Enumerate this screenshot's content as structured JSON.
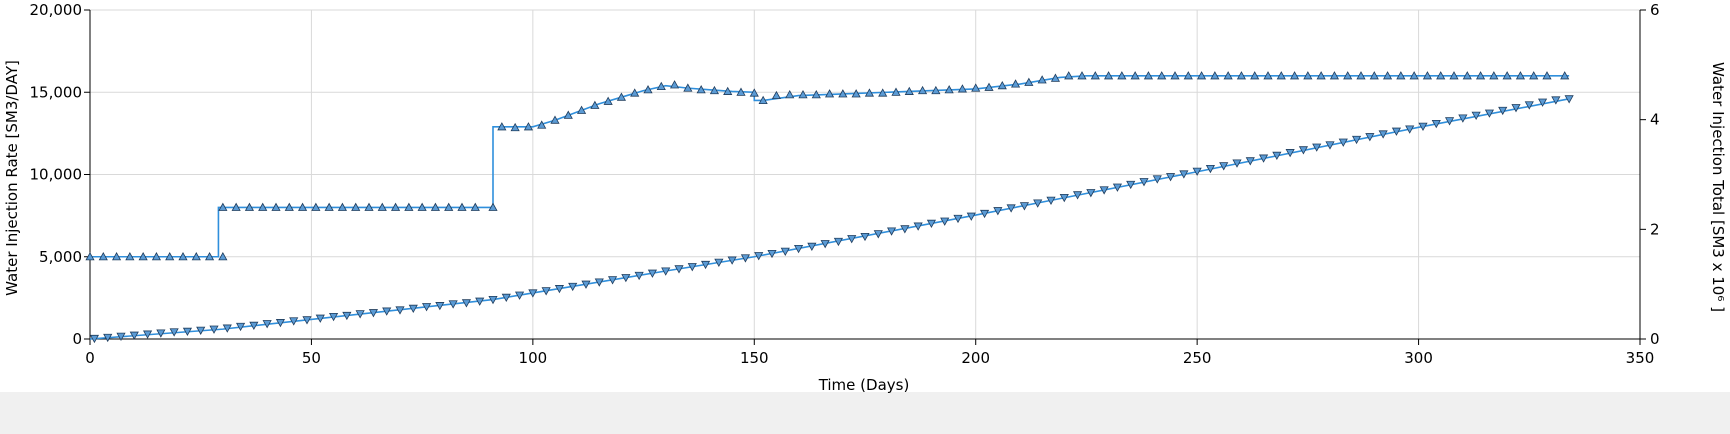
{
  "chart_data": {
    "type": "line",
    "xlabel": "Time (Days)",
    "ylabel": "Water Injection Rate [SM3/DAY]",
    "y2label": "Water Injection Total [SM3 x 10⁶ ]",
    "xlim": [
      0,
      350
    ],
    "ylim": [
      0,
      20000
    ],
    "y2lim": [
      0,
      6
    ],
    "x_ticks": [
      "0",
      "50",
      "100",
      "150",
      "200",
      "250",
      "300",
      "350"
    ],
    "y_ticks": [
      "0",
      "5,000",
      "10,000",
      "15,000",
      "20,000"
    ],
    "y2_ticks": [
      "0",
      "2",
      "4",
      "6"
    ],
    "grid": true,
    "series": [
      {
        "axis": "left",
        "marker": "triangle-up",
        "step": true,
        "color": "#2f8fdc",
        "marker_color": "#5b9bd5",
        "points": [
          [
            0,
            5000
          ],
          [
            29,
            5000
          ],
          [
            29,
            8000
          ],
          [
            91,
            8000
          ],
          [
            91,
            12900
          ],
          [
            100,
            12900
          ],
          [
            105,
            13300
          ],
          [
            110,
            13800
          ],
          [
            115,
            14300
          ],
          [
            120,
            14700
          ],
          [
            125,
            15100
          ],
          [
            130,
            15400
          ],
          [
            135,
            15250
          ],
          [
            140,
            15150
          ],
          [
            145,
            15050
          ],
          [
            150,
            15000
          ],
          [
            150,
            14500
          ],
          [
            152,
            14500
          ],
          [
            160,
            14800
          ],
          [
            170,
            14900
          ],
          [
            180,
            15000
          ],
          [
            190,
            15100
          ],
          [
            200,
            15200
          ],
          [
            210,
            15500
          ],
          [
            219,
            15900
          ],
          [
            225,
            16000
          ],
          [
            250,
            16000
          ],
          [
            300,
            16000
          ],
          [
            334,
            16000
          ]
        ],
        "markers": [
          [
            0,
            5000
          ],
          [
            3,
            5000
          ],
          [
            6,
            5000
          ],
          [
            9,
            5000
          ],
          [
            12,
            5000
          ],
          [
            15,
            5000
          ],
          [
            18,
            5000
          ],
          [
            21,
            5000
          ],
          [
            24,
            5000
          ],
          [
            27,
            5000
          ],
          [
            30,
            5000
          ],
          [
            30,
            8000
          ],
          [
            33,
            8000
          ],
          [
            36,
            8000
          ],
          [
            39,
            8000
          ],
          [
            42,
            8000
          ],
          [
            45,
            8000
          ],
          [
            48,
            8000
          ],
          [
            51,
            8000
          ],
          [
            54,
            8000
          ],
          [
            57,
            8000
          ],
          [
            60,
            8000
          ],
          [
            63,
            8000
          ],
          [
            66,
            8000
          ],
          [
            69,
            8000
          ],
          [
            72,
            8000
          ],
          [
            75,
            8000
          ],
          [
            78,
            8000
          ],
          [
            81,
            8000
          ],
          [
            84,
            8000
          ],
          [
            87,
            8000
          ],
          [
            91,
            8000
          ],
          [
            93,
            12900
          ],
          [
            96,
            12850
          ],
          [
            99,
            12900
          ],
          [
            102,
            13000
          ],
          [
            105,
            13300
          ],
          [
            108,
            13600
          ],
          [
            111,
            13900
          ],
          [
            114,
            14200
          ],
          [
            117,
            14450
          ],
          [
            120,
            14700
          ],
          [
            123,
            14950
          ],
          [
            126,
            15150
          ],
          [
            129,
            15350
          ],
          [
            132,
            15450
          ],
          [
            135,
            15250
          ],
          [
            138,
            15150
          ],
          [
            141,
            15100
          ],
          [
            144,
            15050
          ],
          [
            147,
            15000
          ],
          [
            150,
            14950
          ],
          [
            152,
            14500
          ],
          [
            155,
            14800
          ],
          [
            158,
            14850
          ],
          [
            161,
            14850
          ],
          [
            164,
            14850
          ],
          [
            167,
            14900
          ],
          [
            170,
            14900
          ],
          [
            173,
            14900
          ],
          [
            176,
            14950
          ],
          [
            179,
            14950
          ],
          [
            182,
            15000
          ],
          [
            185,
            15050
          ],
          [
            188,
            15100
          ],
          [
            191,
            15100
          ],
          [
            194,
            15150
          ],
          [
            197,
            15200
          ],
          [
            200,
            15250
          ],
          [
            203,
            15300
          ],
          [
            206,
            15400
          ],
          [
            209,
            15500
          ],
          [
            212,
            15600
          ],
          [
            215,
            15750
          ],
          [
            218,
            15850
          ],
          [
            221,
            16000
          ],
          [
            224,
            16000
          ],
          [
            227,
            16000
          ],
          [
            230,
            16000
          ],
          [
            233,
            16000
          ],
          [
            236,
            16000
          ],
          [
            239,
            16000
          ],
          [
            242,
            16000
          ],
          [
            245,
            16000
          ],
          [
            248,
            16000
          ],
          [
            251,
            16000
          ],
          [
            254,
            16000
          ],
          [
            257,
            16000
          ],
          [
            260,
            16000
          ],
          [
            263,
            16000
          ],
          [
            266,
            16000
          ],
          [
            269,
            16000
          ],
          [
            272,
            16000
          ],
          [
            275,
            16000
          ],
          [
            278,
            16000
          ],
          [
            281,
            16000
          ],
          [
            284,
            16000
          ],
          [
            287,
            16000
          ],
          [
            290,
            16000
          ],
          [
            293,
            16000
          ],
          [
            296,
            16000
          ],
          [
            299,
            16000
          ],
          [
            302,
            16000
          ],
          [
            305,
            16000
          ],
          [
            308,
            16000
          ],
          [
            311,
            16000
          ],
          [
            314,
            16000
          ],
          [
            317,
            16000
          ],
          [
            320,
            16000
          ],
          [
            323,
            16000
          ],
          [
            326,
            16000
          ],
          [
            329,
            16000
          ],
          [
            333,
            16000
          ]
        ]
      },
      {
        "axis": "right",
        "marker": "triangle-down",
        "step": false,
        "color": "#2f8fdc",
        "marker_color": "#5b9bd5",
        "points": [
          [
            0,
            0
          ],
          [
            30,
            0.18
          ],
          [
            91,
            0.72
          ],
          [
            100,
            0.84
          ],
          [
            130,
            1.24
          ],
          [
            150,
            1.5
          ],
          [
            200,
            2.26
          ],
          [
            219,
            2.56
          ],
          [
            250,
            3.05
          ],
          [
            300,
            3.86
          ],
          [
            334,
            4.38
          ]
        ],
        "markers": [
          [
            1,
            0.01
          ],
          [
            4,
            0.03
          ],
          [
            7,
            0.05
          ],
          [
            10,
            0.07
          ],
          [
            13,
            0.09
          ],
          [
            16,
            0.11
          ],
          [
            19,
            0.13
          ],
          [
            22,
            0.14
          ],
          [
            25,
            0.16
          ],
          [
            28,
            0.18
          ],
          [
            31,
            0.2
          ],
          [
            34,
            0.23
          ],
          [
            37,
            0.25
          ],
          [
            40,
            0.28
          ],
          [
            43,
            0.3
          ],
          [
            46,
            0.33
          ],
          [
            49,
            0.35
          ],
          [
            52,
            0.38
          ],
          [
            55,
            0.41
          ],
          [
            58,
            0.43
          ],
          [
            61,
            0.46
          ],
          [
            64,
            0.48
          ],
          [
            67,
            0.51
          ],
          [
            70,
            0.53
          ],
          [
            73,
            0.56
          ],
          [
            76,
            0.59
          ],
          [
            79,
            0.61
          ],
          [
            82,
            0.64
          ],
          [
            85,
            0.66
          ],
          [
            88,
            0.69
          ],
          [
            91,
            0.72
          ],
          [
            94,
            0.76
          ],
          [
            97,
            0.8
          ],
          [
            100,
            0.84
          ],
          [
            103,
            0.88
          ],
          [
            106,
            0.92
          ],
          [
            109,
            0.96
          ],
          [
            112,
            1.0
          ],
          [
            115,
            1.04
          ],
          [
            118,
            1.08
          ],
          [
            121,
            1.12
          ],
          [
            124,
            1.16
          ],
          [
            127,
            1.2
          ],
          [
            130,
            1.24
          ],
          [
            133,
            1.28
          ],
          [
            136,
            1.32
          ],
          [
            139,
            1.36
          ],
          [
            142,
            1.4
          ],
          [
            145,
            1.44
          ],
          [
            148,
            1.48
          ],
          [
            151,
            1.52
          ],
          [
            154,
            1.56
          ],
          [
            157,
            1.6
          ],
          [
            160,
            1.65
          ],
          [
            163,
            1.69
          ],
          [
            166,
            1.74
          ],
          [
            169,
            1.78
          ],
          [
            172,
            1.83
          ],
          [
            175,
            1.87
          ],
          [
            178,
            1.92
          ],
          [
            181,
            1.97
          ],
          [
            184,
            2.01
          ],
          [
            187,
            2.06
          ],
          [
            190,
            2.11
          ],
          [
            193,
            2.15
          ],
          [
            196,
            2.2
          ],
          [
            199,
            2.24
          ],
          [
            202,
            2.29
          ],
          [
            205,
            2.34
          ],
          [
            208,
            2.39
          ],
          [
            211,
            2.43
          ],
          [
            214,
            2.48
          ],
          [
            217,
            2.53
          ],
          [
            220,
            2.58
          ],
          [
            223,
            2.63
          ],
          [
            226,
            2.67
          ],
          [
            229,
            2.72
          ],
          [
            232,
            2.77
          ],
          [
            235,
            2.82
          ],
          [
            238,
            2.87
          ],
          [
            241,
            2.92
          ],
          [
            244,
            2.96
          ],
          [
            247,
            3.01
          ],
          [
            250,
            3.06
          ],
          [
            253,
            3.11
          ],
          [
            256,
            3.16
          ],
          [
            259,
            3.21
          ],
          [
            262,
            3.25
          ],
          [
            265,
            3.3
          ],
          [
            268,
            3.35
          ],
          [
            271,
            3.4
          ],
          [
            274,
            3.45
          ],
          [
            277,
            3.5
          ],
          [
            280,
            3.54
          ],
          [
            283,
            3.59
          ],
          [
            286,
            3.64
          ],
          [
            289,
            3.69
          ],
          [
            292,
            3.74
          ],
          [
            295,
            3.79
          ],
          [
            298,
            3.83
          ],
          [
            301,
            3.88
          ],
          [
            304,
            3.93
          ],
          [
            307,
            3.98
          ],
          [
            310,
            4.03
          ],
          [
            313,
            4.08
          ],
          [
            316,
            4.12
          ],
          [
            319,
            4.17
          ],
          [
            322,
            4.22
          ],
          [
            325,
            4.27
          ],
          [
            328,
            4.32
          ],
          [
            331,
            4.36
          ],
          [
            334,
            4.38
          ]
        ]
      }
    ]
  },
  "status_bar": {
    "color": "#f0f0f0"
  }
}
